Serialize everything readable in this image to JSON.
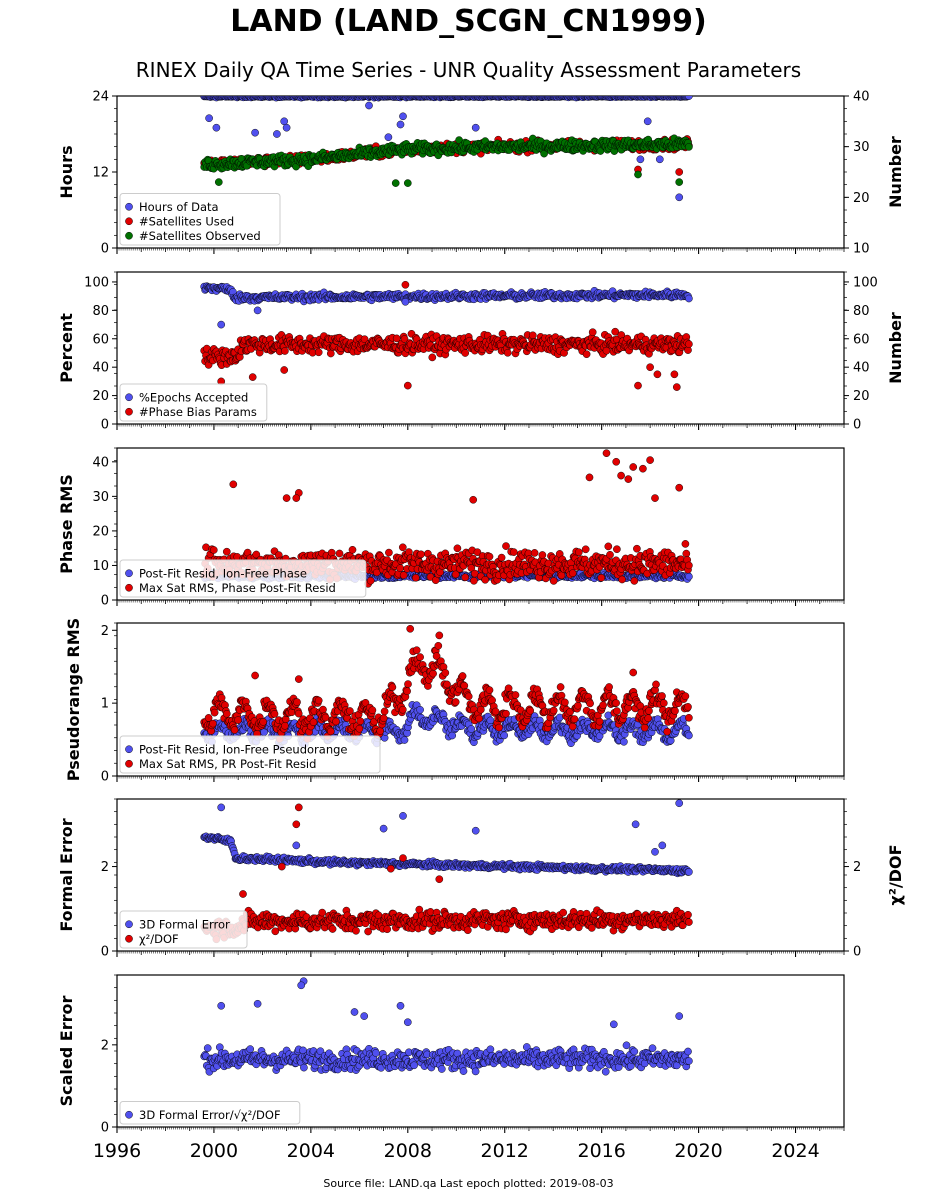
{
  "title": "LAND (LAND_SCGN_CN1999)",
  "subtitle": "RINEX Daily QA Time Series - UNR Quality Assessment Parameters",
  "footer": "Source file: LAND.qa Last epoch plotted: 2019-08-03",
  "colors": {
    "blue": "#5050ee",
    "red": "#e00000",
    "green": "#007000"
  },
  "chart_data": [
    {
      "type": "scatter",
      "panel": "hours",
      "ylabel": "Hours",
      "y2label": "Number",
      "ylim": [
        0,
        24
      ],
      "yticks": [
        "0",
        "12",
        "24"
      ],
      "y2lim": [
        10,
        40
      ],
      "y2ticks": [
        "10",
        "20",
        "30",
        "40"
      ],
      "xlim": [
        1996,
        2026
      ],
      "legend": "lower-left",
      "series": [
        {
          "name": "Hours of Data",
          "color": "blue",
          "axis": "left",
          "x_range": [
            1999.6,
            2019.6
          ],
          "baseline": 24.0,
          "noise": 0.15,
          "outliers": [
            [
              1999.8,
              20.5
            ],
            [
              2000.1,
              19.0
            ],
            [
              2001.7,
              18.2
            ],
            [
              2002.6,
              18.0
            ],
            [
              2002.9,
              20.0
            ],
            [
              2003.0,
              19.0
            ],
            [
              2006.4,
              22.5
            ],
            [
              2007.2,
              17.5
            ],
            [
              2007.7,
              19.5
            ],
            [
              2007.8,
              20.8
            ],
            [
              2010.8,
              19.0
            ],
            [
              2017.9,
              20.0
            ],
            [
              2018.4,
              14.0
            ],
            [
              2019.0,
              16.0
            ],
            [
              2019.2,
              8.0
            ],
            [
              2017.6,
              14.0
            ]
          ]
        },
        {
          "name": "#Satellites Used",
          "color": "red",
          "axis": "right",
          "x_range": [
            1999.6,
            2019.6
          ],
          "trend": [
            [
              1999.6,
              26.5
            ],
            [
              2004.0,
              27.5
            ],
            [
              2008.0,
              29.5
            ],
            [
              2012.0,
              30.0
            ],
            [
              2019.6,
              30.5
            ]
          ],
          "noise": 0.8,
          "outliers": [
            [
              2017.5,
              25.5
            ],
            [
              2019.2,
              25.0
            ]
          ]
        },
        {
          "name": "#Satellites Observed",
          "color": "green",
          "axis": "right",
          "x_range": [
            1999.6,
            2019.6
          ],
          "trend": [
            [
              1999.6,
              26.5
            ],
            [
              2004.0,
              27.5
            ],
            [
              2008.0,
              29.5
            ],
            [
              2012.0,
              30.0
            ],
            [
              2019.6,
              30.5
            ]
          ],
          "noise": 0.9,
          "outliers": [
            [
              2000.2,
              23.0
            ],
            [
              2007.5,
              22.8
            ],
            [
              2008.0,
              22.8
            ],
            [
              2017.5,
              24.5
            ],
            [
              2019.2,
              23.0
            ]
          ]
        }
      ]
    },
    {
      "type": "scatter",
      "panel": "percent",
      "ylabel": "Percent",
      "y2label": "Number",
      "ylim": [
        0,
        107
      ],
      "yticks": [
        "0",
        "20",
        "40",
        "60",
        "80",
        "100"
      ],
      "y2lim": [
        0,
        107
      ],
      "y2ticks": [
        "0",
        "20",
        "40",
        "60",
        "80",
        "100"
      ],
      "xlim": [
        1996,
        2026
      ],
      "legend": "lower-left",
      "series": [
        {
          "name": "%Epochs Accepted",
          "color": "blue",
          "axis": "left",
          "x_range": [
            1999.6,
            2019.6
          ],
          "trend": [
            [
              1999.6,
              96
            ],
            [
              2000.6,
              95
            ],
            [
              2000.9,
              89
            ],
            [
              2019.6,
              91
            ]
          ],
          "noise": 2.0,
          "outliers": [
            [
              2000.3,
              70
            ],
            [
              2007.9,
              86
            ],
            [
              2001.8,
              80
            ]
          ]
        },
        {
          "name": "#Phase Bias Params",
          "color": "red",
          "axis": "right",
          "x_range": [
            1999.6,
            2019.6
          ],
          "trend": [
            [
              1999.6,
              47
            ],
            [
              2000.9,
              48
            ],
            [
              2001.2,
              56
            ],
            [
              2019.6,
              56
            ]
          ],
          "noise": 5.0,
          "outliers": [
            [
              2000.3,
              30
            ],
            [
              2001.6,
              33
            ],
            [
              2002.9,
              38
            ],
            [
              2007.9,
              98
            ],
            [
              2008.0,
              27
            ],
            [
              2017.5,
              27
            ],
            [
              2019.1,
              26
            ],
            [
              2018.0,
              40
            ],
            [
              2018.3,
              35
            ],
            [
              2019.0,
              35
            ]
          ]
        }
      ]
    },
    {
      "type": "scatter",
      "panel": "phase",
      "ylabel": "Phase RMS",
      "ylim": [
        0,
        44
      ],
      "yticks": [
        "0",
        "10",
        "20",
        "30",
        "40"
      ],
      "xlim": [
        1996,
        2026
      ],
      "legend": "lower-left",
      "series": [
        {
          "name": "Post-Fit Resid, Ion-Free Phase",
          "color": "blue",
          "axis": "left",
          "x_range": [
            1999.6,
            2019.6
          ],
          "baseline": 7.0,
          "noise": 0.6,
          "outliers": []
        },
        {
          "name": "Max Sat RMS, Phase Post-Fit Resid",
          "color": "red",
          "axis": "left",
          "x_range": [
            1999.6,
            2019.6
          ],
          "baseline": 10.5,
          "noise": 3.5,
          "outliers": [
            [
              2000.8,
              33.5
            ],
            [
              2003.5,
              31.0
            ],
            [
              2003.4,
              29.5
            ],
            [
              2010.7,
              29.0
            ],
            [
              2015.5,
              35.5
            ],
            [
              2016.2,
              42.5
            ],
            [
              2016.6,
              40.0
            ],
            [
              2016.8,
              36.0
            ],
            [
              2017.3,
              38.5
            ],
            [
              2017.7,
              38.0
            ],
            [
              2018.0,
              40.5
            ],
            [
              2017.1,
              35.0
            ],
            [
              2019.2,
              32.5
            ],
            [
              2018.2,
              29.5
            ],
            [
              2003.0,
              29.5
            ]
          ]
        }
      ]
    },
    {
      "type": "scatter",
      "panel": "pseudorange",
      "ylabel": "Pseudorange RMS",
      "ylim": [
        0,
        2.1
      ],
      "yticks": [
        "0",
        "1",
        "2"
      ],
      "xlim": [
        1996,
        2026
      ],
      "legend": "lower-left",
      "series": [
        {
          "name": "Post-Fit Resid, Ion-Free Pseudorange",
          "color": "blue",
          "axis": "left",
          "x_range": [
            1999.6,
            2019.6
          ],
          "trend": [
            [
              1999.6,
              0.6
            ],
            [
              2007.8,
              0.62
            ],
            [
              2008.3,
              0.85
            ],
            [
              2009.5,
              0.75
            ],
            [
              2010.5,
              0.65
            ],
            [
              2019.6,
              0.62
            ]
          ],
          "noise": 0.08,
          "seasonal": 0.1,
          "outliers": []
        },
        {
          "name": "Max Sat RMS, PR Post-Fit Resid",
          "color": "red",
          "axis": "left",
          "x_range": [
            1999.6,
            2019.6
          ],
          "trend": [
            [
              1999.6,
              0.85
            ],
            [
              2007.0,
              0.8
            ],
            [
              2007.9,
              1.25
            ],
            [
              2008.4,
              1.55
            ],
            [
              2009.3,
              1.45
            ],
            [
              2010.2,
              1.1
            ],
            [
              2011.0,
              0.95
            ],
            [
              2019.6,
              0.95
            ]
          ],
          "noise": 0.12,
          "seasonal": 0.18,
          "outliers": [
            [
              2001.7,
              1.38
            ],
            [
              2003.5,
              1.33
            ],
            [
              2008.1,
              2.02
            ],
            [
              2009.3,
              1.93
            ],
            [
              2017.3,
              1.42
            ]
          ]
        }
      ]
    },
    {
      "type": "scatter",
      "panel": "formal",
      "ylabel": "Formal Error",
      "y2label": "χ²/DOF",
      "ylim": [
        0,
        3.6
      ],
      "yticks": [
        "0",
        "2"
      ],
      "y2lim": [
        0,
        3.6
      ],
      "y2ticks": [
        "0",
        "2"
      ],
      "xlim": [
        1996,
        2026
      ],
      "legend": "lower-left",
      "series": [
        {
          "name": "3D Formal Error",
          "color": "blue",
          "axis": "left",
          "x_range": [
            1999.6,
            2019.6
          ],
          "trend": [
            [
              1999.6,
              2.7
            ],
            [
              2000.7,
              2.6
            ],
            [
              2000.9,
              2.2
            ],
            [
              2005.0,
              2.1
            ],
            [
              2019.6,
              1.9
            ]
          ],
          "noise": 0.05,
          "outliers": [
            [
              2000.3,
              3.4
            ],
            [
              2003.4,
              2.5
            ],
            [
              2007.0,
              2.9
            ],
            [
              2007.8,
              3.2
            ],
            [
              2010.8,
              2.85
            ],
            [
              2017.4,
              3.0
            ],
            [
              2019.2,
              3.5
            ],
            [
              2018.5,
              2.5
            ],
            [
              2018.2,
              2.35
            ]
          ]
        },
        {
          "name": "χ²/DOF",
          "color": "red",
          "axis": "right",
          "x_range": [
            1999.6,
            2019.6
          ],
          "trend": [
            [
              1999.6,
              0.55
            ],
            [
              2000.9,
              0.55
            ],
            [
              2001.5,
              0.7
            ],
            [
              2019.6,
              0.75
            ]
          ],
          "noise": 0.18,
          "outliers": [
            [
              2003.5,
              3.4
            ],
            [
              2003.4,
              3.0
            ],
            [
              2002.8,
              2.0
            ],
            [
              2007.3,
              1.95
            ],
            [
              2007.8,
              2.2
            ],
            [
              2009.3,
              1.7
            ],
            [
              2001.2,
              1.35
            ]
          ]
        }
      ]
    },
    {
      "type": "scatter",
      "panel": "scaled",
      "ylabel": "Scaled Error",
      "ylim": [
        0,
        3.7
      ],
      "yticks": [
        "0",
        "2"
      ],
      "xlim": [
        1996,
        2026
      ],
      "legend": "lower-left",
      "xticks": [
        "1996",
        "2000",
        "2004",
        "2008",
        "2012",
        "2016",
        "2020",
        "2024"
      ],
      "series": [
        {
          "name": "3D Formal Error/√χ²/DOF",
          "color": "blue",
          "axis": "left",
          "x_range": [
            1999.6,
            2019.6
          ],
          "baseline": 1.65,
          "noise": 0.2,
          "outliers": [
            [
              2003.7,
              3.55
            ],
            [
              2003.6,
              3.45
            ],
            [
              2001.8,
              3.0
            ],
            [
              2007.7,
              2.95
            ],
            [
              2000.3,
              2.95
            ],
            [
              2005.8,
              2.8
            ],
            [
              2006.2,
              2.7
            ],
            [
              2008.0,
              2.55
            ],
            [
              2019.2,
              2.7
            ],
            [
              2016.5,
              2.5
            ]
          ]
        }
      ]
    }
  ]
}
